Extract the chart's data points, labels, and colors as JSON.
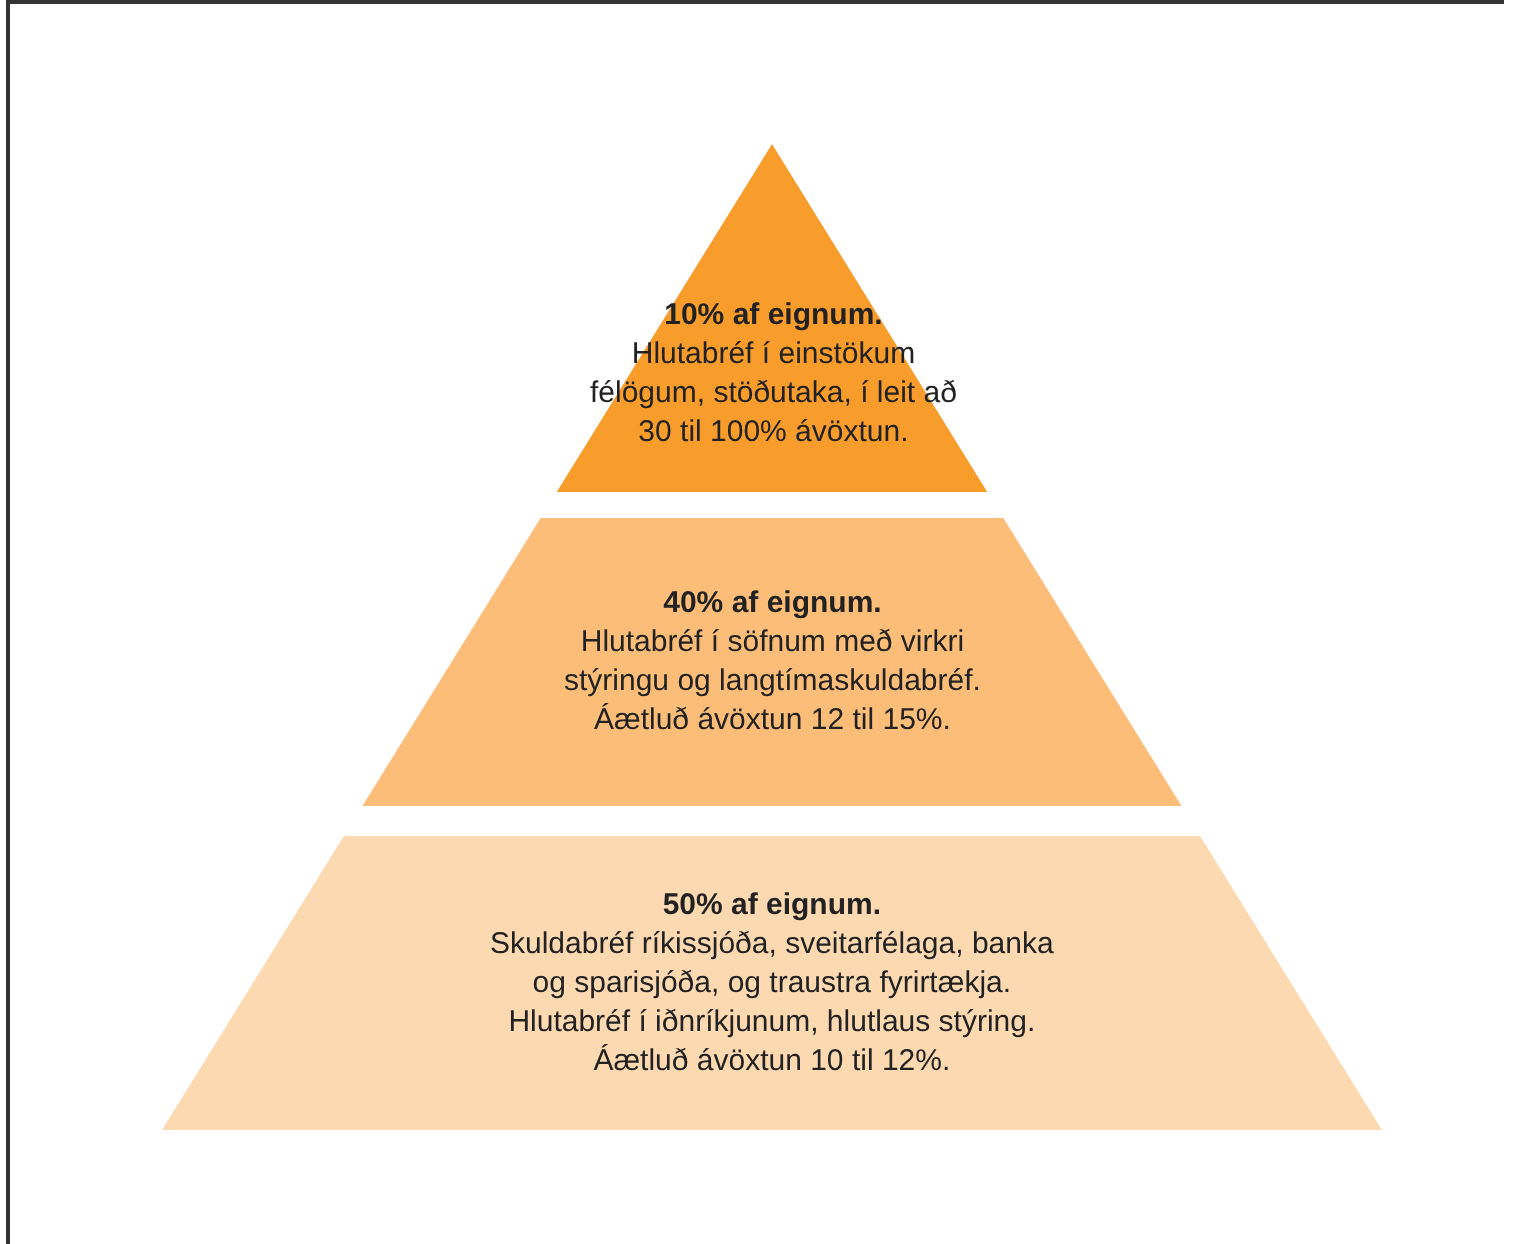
{
  "chart_data": {
    "type": "other",
    "categories": [
      "Hlutabréf í einstökum\nfélögum, stöðutaka, í leit að\n30 til 100% ávöxtun.",
      "Hlutabréf í söfnum með virkri\nstýringu og langtímaskuldabréf.\nÁætluð ávöxtun 12 til 15%.",
      "Skuldabréf ríkissjóða, sveitarfélaga, banka\nog sparisjóða, og traustra fyrirtækja.\nHlutabréf í iðnríkjunum, hlutlaus stýring.\nÁætluð ávöxtun 10 til 12%."
    ],
    "values": [
      10,
      40,
      50
    ],
    "value_labels": [
      "10% af eignum.",
      "40% af eignum.",
      "50% af eignum."
    ],
    "colors": [
      "#f89c2c",
      "#fbbd78",
      "#fdd9b2"
    ]
  }
}
